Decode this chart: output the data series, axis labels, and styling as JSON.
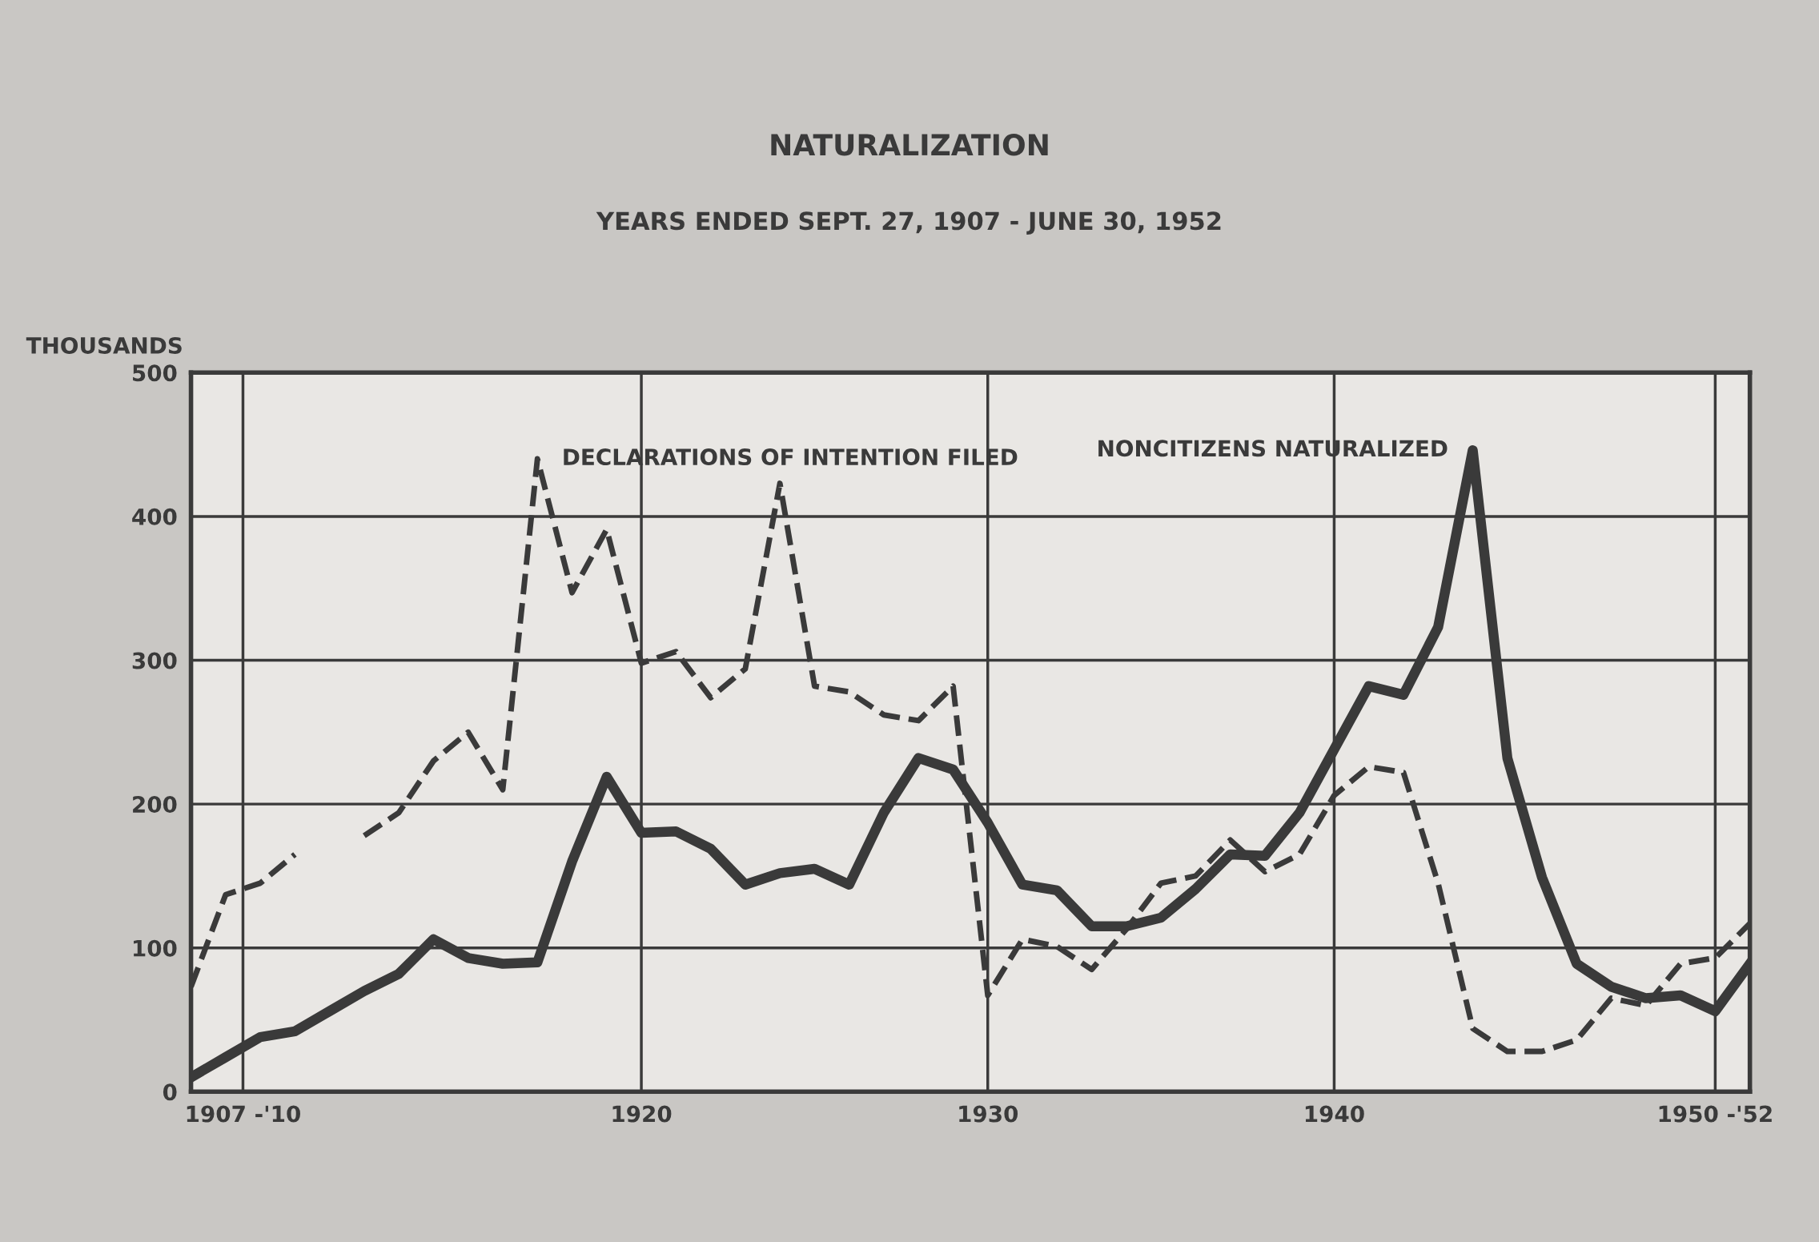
{
  "chart_data": {
    "type": "line",
    "title": "NATURALIZATION",
    "subtitle": "YEARS ENDED SEPT. 27, 1907 - JUNE 30, 1952",
    "ylabel": "THOUSANDS",
    "x": [
      1907,
      1908,
      1909,
      1910,
      1911,
      1912,
      1913,
      1914,
      1915,
      1916,
      1917,
      1918,
      1919,
      1920,
      1921,
      1922,
      1923,
      1924,
      1925,
      1926,
      1927,
      1928,
      1929,
      1930,
      1931,
      1932,
      1933,
      1934,
      1935,
      1936,
      1937,
      1938,
      1939,
      1940,
      1941,
      1942,
      1943,
      1944,
      1945,
      1946,
      1947,
      1948,
      1949,
      1950,
      1951,
      1952
    ],
    "series": [
      {
        "name": "DECLARATIONS OF INTENTION FILED",
        "color": "#3a3a3a",
        "line_style": "dashed",
        "values": [
          73,
          137,
          145,
          165,
          null,
          178,
          194,
          230,
          250,
          210,
          440,
          347,
          391,
          298,
          306,
          274,
          294,
          423,
          282,
          278,
          262,
          258,
          282,
          67,
          106,
          101,
          85,
          113,
          145,
          150,
          175,
          153,
          165,
          206,
          226,
          222,
          145,
          44,
          28,
          28,
          36,
          65,
          60,
          89,
          93,
          117
        ]
      },
      {
        "name": "NONCITIZENS NATURALIZED",
        "color": "#3a3a3a",
        "line_style": "solid",
        "values": [
          10,
          24,
          38,
          42,
          56,
          70,
          82,
          106,
          93,
          89,
          90,
          160,
          219,
          180,
          181,
          169,
          144,
          152,
          155,
          144,
          194,
          232,
          224,
          187,
          144,
          140,
          115,
          115,
          121,
          141,
          165,
          164,
          194,
          238,
          282,
          276,
          323,
          446,
          232,
          149,
          89,
          73,
          65,
          67,
          56,
          89
        ]
      }
    ],
    "xlim": [
      1907,
      1952
    ],
    "ylim": [
      0,
      500
    ],
    "xticks": [
      {
        "value": 1908.5,
        "label": "1907 -'10"
      },
      1920,
      1930,
      1940,
      {
        "value": 1951,
        "label": "1950 -'52"
      }
    ],
    "yticks": [
      0,
      100,
      200,
      300,
      400,
      500
    ],
    "grid": true,
    "legend": false,
    "marker": "none"
  }
}
